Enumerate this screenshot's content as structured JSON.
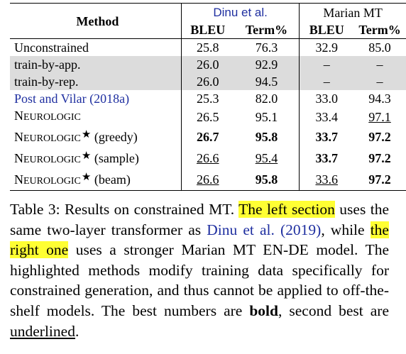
{
  "table": {
    "header": {
      "method": "Method",
      "group1": "Dinu et al.",
      "group2": "Marian MT",
      "bleu": "BLEU",
      "term": "Term%"
    },
    "rows": [
      {
        "method": "Unconstrained",
        "d_bleu": "25.8",
        "d_term": "76.3",
        "m_bleu": "32.9",
        "m_term": "85.0"
      },
      {
        "method": "train-by-app.",
        "d_bleu": "26.0",
        "d_term": "92.9",
        "m_bleu": "–",
        "m_term": "–"
      },
      {
        "method": "train-by-rep.",
        "d_bleu": "26.0",
        "d_term": "94.5",
        "m_bleu": "–",
        "m_term": "–"
      },
      {
        "method": "Post and Vilar",
        "cite": "(2018a)",
        "d_bleu": "25.3",
        "d_term": "82.0",
        "m_bleu": "33.0",
        "m_term": "94.3"
      },
      {
        "method_n": "N",
        "method_rest": "EUROLOGIC",
        "d_bleu": "26.5",
        "d_term": "95.1",
        "m_bleu": "33.4",
        "m_term": "97.1"
      },
      {
        "method_n": "N",
        "method_rest": "EUROLOGIC",
        "variant": "(greedy)",
        "d_bleu": "26.7",
        "d_term": "95.8",
        "m_bleu": "33.7",
        "m_term": "97.2"
      },
      {
        "method_n": "N",
        "method_rest": "EUROLOGIC",
        "variant": "(sample)",
        "d_bleu": "26.6",
        "d_term": "95.4",
        "m_bleu": "33.7",
        "m_term": "97.2"
      },
      {
        "method_n": "N",
        "method_rest": "EUROLOGIC",
        "variant": "(beam)",
        "d_bleu": "26.6",
        "d_term": "95.8",
        "m_bleu": "33.6",
        "m_term": "97.2"
      }
    ]
  },
  "caption": {
    "p1": "Table 3: Results on constrained MT. ",
    "hl1": "The left section",
    "p2": " uses the same two-layer transformer as ",
    "cite_name": "Dinu et al.",
    "cite_year": "(2019)",
    "p3": ", while ",
    "hl2": "the right one",
    "p4": " uses a stronger Marian MT EN-DE model. The highlighted methods modify training data specifically for constrained generation, and thus cannot be applied to off-the-shelf models. The best numbers are ",
    "bold_word": "bold",
    "p5": ", second best are ",
    "underline_word": "underlined",
    "p6": "."
  },
  "colors": {
    "link": "#1f2fa0",
    "highlight": "#ffff33",
    "shade": "#dcdcdc"
  }
}
